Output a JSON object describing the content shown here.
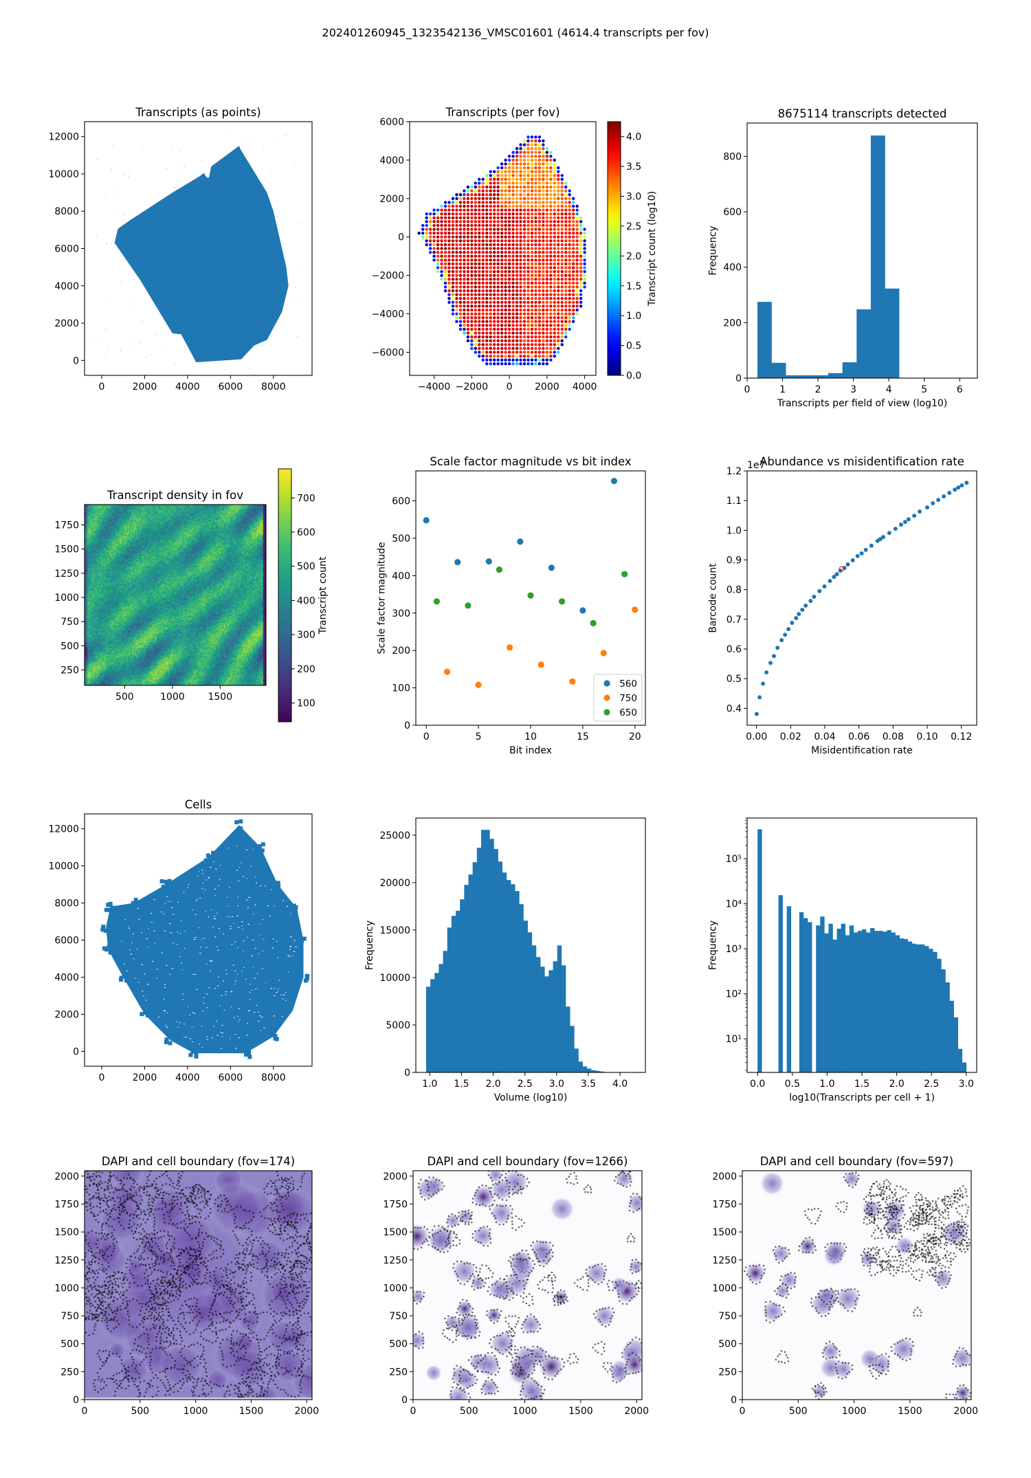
{
  "suptitle": "202401260945_1323542136_VMSC01601 (4614.4 transcripts per fov)",
  "colors": {
    "blue": "#1f77b4",
    "orange": "#ff7f0e",
    "green": "#2ca02c",
    "highlight": "#ff0000"
  },
  "chart_data": [
    {
      "type": "scatter",
      "title": "Transcripts (as points)",
      "xlabel": "",
      "ylabel": "",
      "xlim": [
        -800,
        9800
      ],
      "ylim": [
        -800,
        12800
      ],
      "xticks": [
        0,
        2000,
        4000,
        6000,
        8000
      ],
      "xtick_labels": [
        "0",
        "2000",
        "4000",
        "6000",
        "8000"
      ],
      "yticks": [
        0,
        2000,
        4000,
        6000,
        8000,
        10000,
        12000
      ],
      "ytick_labels": [
        "0",
        "2000",
        "4000",
        "6000",
        "8000",
        "10000",
        "12000"
      ],
      "outline": [
        [
          600,
          6300
        ],
        [
          750,
          7050
        ],
        [
          1300,
          7500
        ],
        [
          3300,
          9000
        ],
        [
          4600,
          9900
        ],
        [
          4750,
          10050
        ],
        [
          4900,
          9800
        ],
        [
          5000,
          9800
        ],
        [
          5100,
          10400
        ],
        [
          6400,
          11500
        ],
        [
          6500,
          11250
        ],
        [
          7700,
          9000
        ],
        [
          8000,
          8000
        ],
        [
          8600,
          5000
        ],
        [
          8700,
          4000
        ],
        [
          8400,
          2600
        ],
        [
          7700,
          1100
        ],
        [
          7100,
          800
        ],
        [
          6500,
          60
        ],
        [
          4400,
          -100
        ],
        [
          3700,
          1400
        ],
        [
          3300,
          1450
        ],
        [
          2900,
          2200
        ],
        [
          1800,
          4300
        ]
      ]
    },
    {
      "type": "scatter",
      "title": "Transcripts (per fov)",
      "xlabel": "",
      "ylabel": "",
      "xlim": [
        -5300,
        4600
      ],
      "ylim": [
        -7200,
        6000
      ],
      "xticks": [
        -4000,
        -2000,
        0,
        2000,
        4000
      ],
      "xtick_labels": [
        "−4000",
        "−2000",
        "0",
        "2000",
        "4000"
      ],
      "yticks": [
        -6000,
        -4000,
        -2000,
        0,
        2000,
        4000,
        6000
      ],
      "ytick_labels": [
        "−6000",
        "−4000",
        "−2000",
        "0",
        "2000",
        "4000",
        "6000"
      ],
      "colorbar": {
        "label": "Transcript count (log10)",
        "range": [
          0,
          4.25
        ],
        "ticks": [
          0,
          0.5,
          1,
          1.5,
          2,
          2.5,
          3,
          3.5,
          4
        ],
        "tick_labels": [
          "0.0",
          "0.5",
          "1.0",
          "1.5",
          "2.0",
          "2.5",
          "3.0",
          "3.5",
          "4.0"
        ],
        "colormap": "jet"
      },
      "grid_spacing": 200,
      "outline": [
        [
          -4800,
          200
        ],
        [
          -4400,
          1200
        ],
        [
          -3400,
          1800
        ],
        [
          -1600,
          3000
        ],
        [
          -200,
          4000
        ],
        [
          1000,
          5200
        ],
        [
          1600,
          5400
        ],
        [
          2600,
          3800
        ],
        [
          3400,
          2200
        ],
        [
          4000,
          600
        ],
        [
          4200,
          -800
        ],
        [
          4000,
          -2800
        ],
        [
          3800,
          -3800
        ],
        [
          3200,
          -5000
        ],
        [
          2800,
          -5800
        ],
        [
          2200,
          -6600
        ],
        [
          -1300,
          -6600
        ],
        [
          -2000,
          -5800
        ],
        [
          -2800,
          -4500
        ],
        [
          -3200,
          -3500
        ],
        [
          -3800,
          -1800
        ],
        [
          -4300,
          -600
        ]
      ]
    },
    {
      "type": "bar",
      "title": "8675114 transcripts detected",
      "xlabel": "Transcripts per field of view (log10)",
      "ylabel": "Frequency",
      "xlim": [
        0,
        6.5
      ],
      "ylim": [
        0,
        920
      ],
      "xticks": [
        0,
        1,
        2,
        3,
        4,
        5,
        6
      ],
      "xtick_labels": [
        "0",
        "1",
        "2",
        "3",
        "4",
        "5",
        "6"
      ],
      "yticks": [
        0,
        200,
        400,
        600,
        800
      ],
      "ytick_labels": [
        "0",
        "200",
        "400",
        "600",
        "800"
      ],
      "bin_start": 0.29,
      "bin_width": 0.4,
      "values": [
        275,
        55,
        10,
        10,
        10,
        18,
        57,
        248,
        875,
        323
      ]
    },
    {
      "type": "heatmap",
      "title": "Transcript density in fov",
      "xlabel": "",
      "ylabel": "",
      "xlim": [
        80,
        1980
      ],
      "ylim": [
        90,
        1960
      ],
      "xticks": [
        500,
        1000,
        1500
      ],
      "xtick_labels": [
        "500",
        "1000",
        "1500"
      ],
      "yticks": [
        250,
        500,
        750,
        1000,
        1250,
        1500,
        1750
      ],
      "ytick_labels": [
        "250",
        "500",
        "750",
        "1000",
        "1250",
        "1500",
        "1750"
      ],
      "colorbar": {
        "label": "Transcript count",
        "range": [
          45,
          785
        ],
        "ticks": [
          100,
          200,
          300,
          400,
          500,
          600,
          700
        ],
        "tick_labels": [
          "100",
          "200",
          "300",
          "400",
          "500",
          "600",
          "700"
        ],
        "colormap": "viridis"
      }
    },
    {
      "type": "scatter",
      "title": "Scale factor magnitude vs bit index",
      "xlabel": "Bit index",
      "ylabel": "Scale factor magnitude",
      "xlim": [
        -1,
        21
      ],
      "ylim": [
        0,
        680
      ],
      "xticks": [
        0,
        5,
        10,
        15,
        20
      ],
      "xtick_labels": [
        "0",
        "5",
        "10",
        "15",
        "20"
      ],
      "yticks": [
        0,
        100,
        200,
        300,
        400,
        500,
        600
      ],
      "ytick_labels": [
        "0",
        "100",
        "200",
        "300",
        "400",
        "500",
        "600"
      ],
      "legend_position": "lower-right",
      "series": [
        {
          "name": "560",
          "color": "#1f77b4",
          "x": [
            0,
            3,
            6,
            9,
            12,
            15,
            18
          ],
          "y": [
            548,
            436,
            438,
            491,
            421,
            307,
            653
          ]
        },
        {
          "name": "750",
          "color": "#ff7f0e",
          "x": [
            2,
            5,
            8,
            11,
            14,
            17,
            20
          ],
          "y": [
            143,
            108,
            208,
            162,
            117,
            193,
            309
          ]
        },
        {
          "name": "650",
          "color": "#2ca02c",
          "x": [
            1,
            4,
            7,
            10,
            13,
            16,
            19
          ],
          "y": [
            331,
            320,
            416,
            347,
            331,
            273,
            404
          ]
        }
      ]
    },
    {
      "type": "scatter",
      "title": "Abundance vs misidentification rate",
      "xlabel": "Misidentification rate",
      "ylabel": "Barcode count",
      "offset_text": "1e7",
      "xlim": [
        -0.0055,
        0.129
      ],
      "ylim": [
        0.343,
        1.2
      ],
      "xticks": [
        0,
        0.02,
        0.04,
        0.06,
        0.08,
        0.1,
        0.12
      ],
      "xtick_labels": [
        "0.00",
        "0.02",
        "0.04",
        "0.06",
        "0.08",
        "0.10",
        "0.12"
      ],
      "yticks": [
        0.4,
        0.5,
        0.6,
        0.7,
        0.8,
        0.9,
        1.0,
        1.1,
        1.2
      ],
      "ytick_labels": [
        "0.4",
        "0.5",
        "0.6",
        "0.7",
        "0.8",
        "0.9",
        "1.0",
        "1.1",
        "1.2"
      ],
      "x": [
        0.0001,
        0.0018,
        0.0038,
        0.0058,
        0.0082,
        0.0102,
        0.0123,
        0.0147,
        0.0167,
        0.0187,
        0.0208,
        0.0232,
        0.0248,
        0.0268,
        0.0288,
        0.0317,
        0.0337,
        0.0369,
        0.0398,
        0.043,
        0.0454,
        0.0471,
        0.0491,
        0.0515,
        0.0535,
        0.0564,
        0.0592,
        0.0616,
        0.064,
        0.0673,
        0.0709,
        0.0725,
        0.0742,
        0.0778,
        0.0814,
        0.0847,
        0.0871,
        0.0891,
        0.0924,
        0.0956,
        0.1,
        0.1033,
        0.1065,
        0.1097,
        0.113,
        0.1162,
        0.1182,
        0.1203,
        0.1231
      ],
      "y": [
        0.381,
        0.437,
        0.483,
        0.521,
        0.553,
        0.576,
        0.604,
        0.63,
        0.648,
        0.667,
        0.688,
        0.704,
        0.718,
        0.732,
        0.746,
        0.762,
        0.776,
        0.795,
        0.811,
        0.829,
        0.843,
        0.852,
        0.864,
        0.873,
        0.885,
        0.899,
        0.913,
        0.922,
        0.934,
        0.948,
        0.964,
        0.97,
        0.977,
        0.991,
        1.005,
        1.019,
        1.028,
        1.037,
        1.049,
        1.063,
        1.077,
        1.091,
        1.102,
        1.114,
        1.126,
        1.137,
        1.144,
        1.151,
        1.16
      ],
      "highlight": {
        "x": 0.05,
        "y": 0.87
      }
    },
    {
      "type": "scatter",
      "title": "Cells",
      "xlabel": "",
      "ylabel": "",
      "xlim": [
        -800,
        9800
      ],
      "ylim": [
        -800,
        12800
      ],
      "xticks": [
        0,
        2000,
        4000,
        6000,
        8000
      ],
      "xtick_labels": [
        "0",
        "2000",
        "4000",
        "6000",
        "8000"
      ],
      "yticks": [
        0,
        2000,
        4000,
        6000,
        8000,
        10000,
        12000
      ],
      "ytick_labels": [
        "0",
        "2000",
        "4000",
        "6000",
        "8000",
        "10000",
        "12000"
      ],
      "outline": [
        [
          200,
          6700
        ],
        [
          400,
          7800
        ],
        [
          1500,
          8000
        ],
        [
          3000,
          9000
        ],
        [
          5000,
          10500
        ],
        [
          6400,
          12200
        ],
        [
          7400,
          11000
        ],
        [
          8200,
          9000
        ],
        [
          9100,
          7700
        ],
        [
          9400,
          6000
        ],
        [
          9400,
          4000
        ],
        [
          8900,
          2200
        ],
        [
          8000,
          800
        ],
        [
          6700,
          -100
        ],
        [
          4300,
          -100
        ],
        [
          3200,
          600
        ],
        [
          2000,
          2000
        ],
        [
          1000,
          4000
        ],
        [
          300,
          5500
        ]
      ]
    },
    {
      "type": "bar",
      "title": "",
      "xlabel": "Volume (log10)",
      "ylabel": "Frequency",
      "xlim": [
        0.78,
        4.4
      ],
      "ylim": [
        0,
        26800
      ],
      "xticks": [
        1,
        1.5,
        2,
        2.5,
        3,
        3.5,
        4
      ],
      "xtick_labels": [
        "1.0",
        "1.5",
        "2.0",
        "2.5",
        "3.0",
        "3.5",
        "4.0"
      ],
      "yticks": [
        0,
        5000,
        10000,
        15000,
        20000,
        25000
      ],
      "ytick_labels": [
        "0",
        "5000",
        "10000",
        "15000",
        "20000",
        "25000"
      ],
      "bin_start": 0.942,
      "bin_width": 0.0667,
      "values": [
        9030,
        9830,
        10480,
        11420,
        12800,
        15260,
        16500,
        17030,
        18240,
        19760,
        20850,
        22150,
        23670,
        25560,
        25560,
        24610,
        23530,
        22220,
        21060,
        20270,
        19830,
        19110,
        17730,
        15990,
        14760,
        13380,
        12150,
        11140,
        10120,
        10770,
        11710,
        13380,
        11280,
        6930,
        4900,
        2510,
        1140,
        630,
        410,
        240,
        170,
        100
      ]
    },
    {
      "type": "bar",
      "title": "",
      "xlabel": "log10(Transcripts per cell + 1)",
      "ylabel": "Frequency",
      "yscale": "log",
      "xlim": [
        -0.15,
        3.15
      ],
      "ylim": [
        1.8,
        800000
      ],
      "xticks": [
        0,
        0.5,
        1,
        1.5,
        2,
        2.5,
        3
      ],
      "xtick_labels": [
        "0.0",
        "0.5",
        "1.0",
        "1.5",
        "2.0",
        "2.5",
        "3.0"
      ],
      "yticks": [
        10,
        100,
        1000,
        10000,
        100000
      ],
      "ytick_labels": [
        "10¹",
        "10²",
        "10³",
        "10⁴",
        "10⁵"
      ],
      "bin_start": 0,
      "bin_width": 0.06,
      "values": [
        450000,
        0,
        0,
        0,
        0,
        15500,
        0,
        8800,
        0,
        0,
        6500,
        4800,
        3900,
        0,
        3300,
        5200,
        2200,
        3600,
        1600,
        2800,
        3600,
        2000,
        3300,
        2300,
        2500,
        2700,
        2300,
        2900,
        2500,
        2500,
        2400,
        2600,
        2300,
        2000,
        1700,
        1650,
        1450,
        1300,
        1250,
        1250,
        1150,
        1000,
        850,
        600,
        350,
        180,
        70,
        30,
        6,
        3
      ]
    },
    {
      "type": "image",
      "title": "DAPI and cell boundary (fov=174)",
      "xlim": [
        0,
        2048
      ],
      "ylim": [
        0,
        2048
      ],
      "xticks": [
        0,
        500,
        1000,
        1500,
        2000
      ],
      "xtick_labels": [
        "0",
        "500",
        "1000",
        "1500",
        "2000"
      ],
      "yticks": [
        0,
        250,
        500,
        750,
        1000,
        1250,
        1500,
        1750,
        2000
      ],
      "ytick_labels": [
        "0",
        "250",
        "500",
        "750",
        "1000",
        "1250",
        "1500",
        "1750",
        "2000"
      ]
    },
    {
      "type": "image",
      "title": "DAPI and cell boundary (fov=1266)",
      "xlim": [
        0,
        2048
      ],
      "ylim": [
        0,
        2048
      ],
      "xticks": [
        0,
        500,
        1000,
        1500,
        2000
      ],
      "xtick_labels": [
        "0",
        "500",
        "1000",
        "1500",
        "2000"
      ],
      "yticks": [
        0,
        250,
        500,
        750,
        1000,
        1250,
        1500,
        1750,
        2000
      ],
      "ytick_labels": [
        "0",
        "250",
        "500",
        "750",
        "1000",
        "1250",
        "1500",
        "1750",
        "2000"
      ]
    },
    {
      "type": "image",
      "title": "DAPI and cell boundary (fov=597)",
      "xlim": [
        0,
        2048
      ],
      "ylim": [
        0,
        2048
      ],
      "xticks": [
        0,
        500,
        1000,
        1500,
        2000
      ],
      "xtick_labels": [
        "0",
        "500",
        "1000",
        "1500",
        "2000"
      ],
      "yticks": [
        0,
        250,
        500,
        750,
        1000,
        1250,
        1500,
        1750,
        2000
      ],
      "ytick_labels": [
        "0",
        "250",
        "500",
        "750",
        "1000",
        "1250",
        "1500",
        "1750",
        "2000"
      ]
    }
  ]
}
